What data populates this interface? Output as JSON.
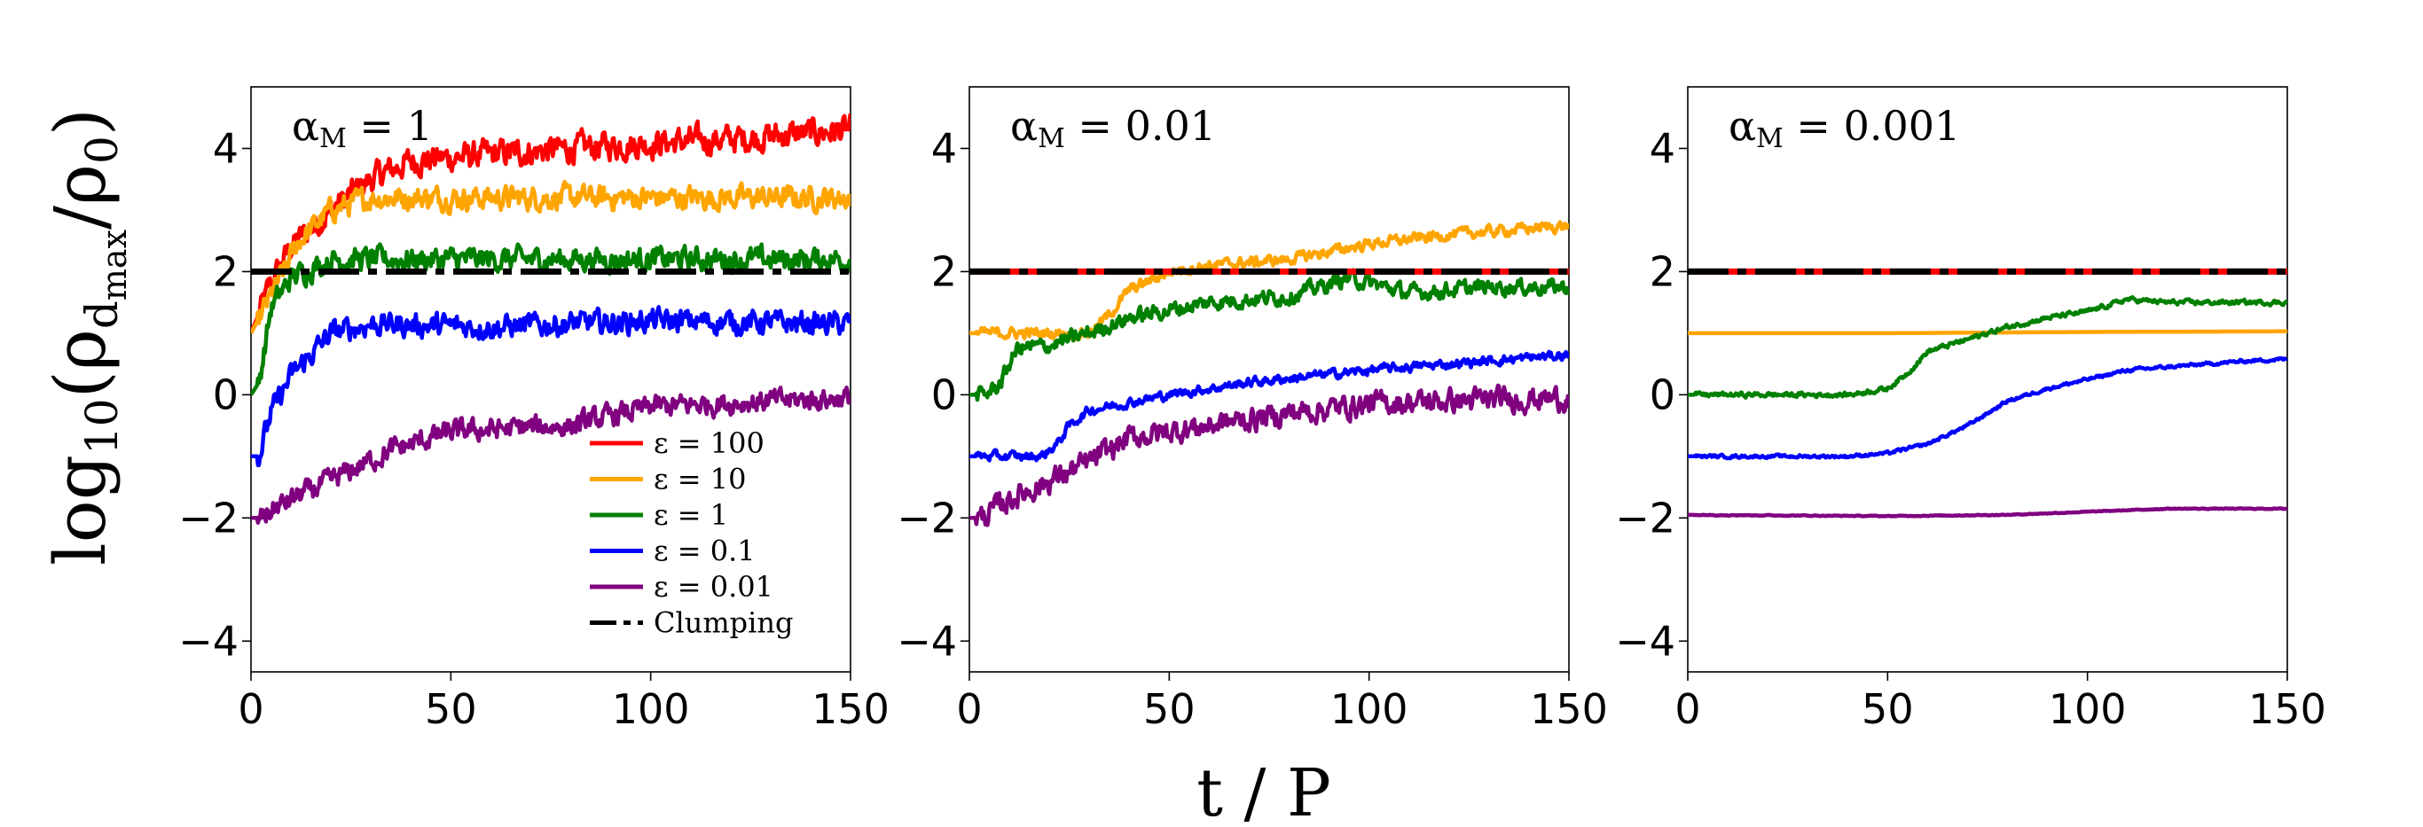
{
  "chart_data": {
    "type": "line",
    "xlabel": "t / P",
    "ylabel": "log10(ρ_dmax/ρ0)",
    "xlim": [
      0,
      150
    ],
    "ylim": [
      -4.5,
      5
    ],
    "xticks": [
      "0",
      "50",
      "100",
      "150"
    ],
    "yticks": [
      "−4",
      "−2",
      "0",
      "2",
      "4"
    ],
    "grid": false,
    "legend": {
      "location": "lower-right of first panel",
      "entries": [
        {
          "label": "ε = 100",
          "color": "#ff0000"
        },
        {
          "label": "ε = 10",
          "color": "#ffa500"
        },
        {
          "label": "ε = 1",
          "color": "#008000"
        },
        {
          "label": "ε = 0.1",
          "color": "#0000ff"
        },
        {
          "label": "ε = 0.01",
          "color": "#800080"
        },
        {
          "label": "Clumping",
          "color": "#000000"
        }
      ]
    },
    "panels": [
      {
        "title": "αM = 1",
        "series": [
          {
            "name": "ε = 100",
            "color": "#ff0000",
            "noise": 0.18,
            "points": [
              [
                0,
                1
              ],
              [
                5,
                1.8
              ],
              [
                10,
                2.4
              ],
              [
                20,
                3.0
              ],
              [
                30,
                3.5
              ],
              [
                40,
                3.8
              ],
              [
                60,
                3.9
              ],
              [
                90,
                4.05
              ],
              [
                120,
                4.15
              ],
              [
                150,
                4.3
              ]
            ]
          },
          {
            "name": "ε = 10",
            "color": "#ffa500",
            "noise": 0.15,
            "points": [
              [
                0,
                1
              ],
              [
                5,
                1.6
              ],
              [
                12,
                2.5
              ],
              [
                20,
                3.0
              ],
              [
                30,
                3.2
              ],
              [
                60,
                3.2
              ],
              [
                100,
                3.2
              ],
              [
                150,
                3.2
              ]
            ]
          },
          {
            "name": "ε = 1",
            "color": "#008000",
            "noise": 0.15,
            "points": [
              [
                0,
                0
              ],
              [
                2,
                0.2
              ],
              [
                5,
                1.4
              ],
              [
                10,
                1.9
              ],
              [
                20,
                2.2
              ],
              [
                60,
                2.2
              ],
              [
                100,
                2.2
              ],
              [
                150,
                2.2
              ]
            ]
          },
          {
            "name": "ε = 0.1",
            "color": "#0000ff",
            "noise": 0.15,
            "points": [
              [
                0,
                -1
              ],
              [
                2,
                -1
              ],
              [
                5,
                -0.3
              ],
              [
                10,
                0.3
              ],
              [
                20,
                1.0
              ],
              [
                30,
                1.15
              ],
              [
                60,
                1.1
              ],
              [
                100,
                1.2
              ],
              [
                150,
                1.15
              ]
            ]
          },
          {
            "name": "ε = 0.01",
            "color": "#800080",
            "noise": 0.14,
            "points": [
              [
                0,
                -2
              ],
              [
                2,
                -2
              ],
              [
                10,
                -1.7
              ],
              [
                20,
                -1.4
              ],
              [
                35,
                -0.9
              ],
              [
                50,
                -0.6
              ],
              [
                80,
                -0.5
              ],
              [
                100,
                -0.2
              ],
              [
                130,
                -0.1
              ],
              [
                150,
                -0.05
              ]
            ]
          }
        ],
        "clumping": {
          "y": 2,
          "segment_color": "#000000",
          "red_dashes": false
        }
      },
      {
        "title": "αM = 0.01",
        "series": [
          {
            "name": "ε = 10",
            "color": "#ffa500",
            "noise": 0.07,
            "points": [
              [
                0,
                1
              ],
              [
                30,
                1
              ],
              [
                35,
                1.3
              ],
              [
                40,
                1.7
              ],
              [
                50,
                2.0
              ],
              [
                60,
                2.1
              ],
              [
                80,
                2.2
              ],
              [
                100,
                2.45
              ],
              [
                120,
                2.6
              ],
              [
                150,
                2.75
              ]
            ]
          },
          {
            "name": "ε = 1",
            "color": "#008000",
            "noise": 0.1,
            "points": [
              [
                0,
                0
              ],
              [
                4,
                0
              ],
              [
                8,
                0.2
              ],
              [
                10,
                0.5
              ],
              [
                12,
                0.75
              ],
              [
                20,
                0.8
              ],
              [
                30,
                1.0
              ],
              [
                40,
                1.25
              ],
              [
                60,
                1.5
              ],
              [
                80,
                1.6
              ],
              [
                95,
                1.9
              ],
              [
                110,
                1.65
              ],
              [
                130,
                1.75
              ],
              [
                150,
                1.75
              ]
            ]
          },
          {
            "name": "ε = 0.1",
            "color": "#0000ff",
            "noise": 0.06,
            "points": [
              [
                0,
                -1
              ],
              [
                18,
                -1
              ],
              [
                22,
                -0.8
              ],
              [
                25,
                -0.5
              ],
              [
                30,
                -0.25
              ],
              [
                50,
                0
              ],
              [
                70,
                0.2
              ],
              [
                100,
                0.4
              ],
              [
                130,
                0.55
              ],
              [
                150,
                0.65
              ]
            ]
          },
          {
            "name": "ε = 0.01",
            "color": "#800080",
            "noise": 0.15,
            "points": [
              [
                0,
                -2
              ],
              [
                3,
                -2
              ],
              [
                10,
                -1.7
              ],
              [
                20,
                -1.4
              ],
              [
                30,
                -1.1
              ],
              [
                40,
                -0.7
              ],
              [
                60,
                -0.5
              ],
              [
                80,
                -0.3
              ],
              [
                100,
                -0.15
              ],
              [
                120,
                -0.1
              ],
              [
                150,
                -0.05
              ]
            ]
          }
        ],
        "clumping": {
          "y": 2,
          "segment_color": "#000000",
          "red_dashes": true
        }
      },
      {
        "title": "αM = 0.001",
        "series": [
          {
            "name": "ε = 10",
            "color": "#ffa500",
            "noise": 0.0,
            "points": [
              [
                0,
                1
              ],
              [
                50,
                1
              ],
              [
                100,
                1.02
              ],
              [
                150,
                1.03
              ]
            ]
          },
          {
            "name": "ε = 1",
            "color": "#008000",
            "noise": 0.03,
            "points": [
              [
                0,
                0
              ],
              [
                40,
                0
              ],
              [
                50,
                0.1
              ],
              [
                55,
                0.35
              ],
              [
                60,
                0.7
              ],
              [
                70,
                0.9
              ],
              [
                80,
                1.1
              ],
              [
                90,
                1.25
              ],
              [
                100,
                1.35
              ],
              [
                110,
                1.55
              ],
              [
                120,
                1.5
              ],
              [
                150,
                1.5
              ]
            ]
          },
          {
            "name": "ε = 0.1",
            "color": "#0000ff",
            "noise": 0.02,
            "points": [
              [
                0,
                -1
              ],
              [
                40,
                -1
              ],
              [
                50,
                -0.95
              ],
              [
                60,
                -0.8
              ],
              [
                70,
                -0.5
              ],
              [
                80,
                -0.1
              ],
              [
                90,
                0.1
              ],
              [
                100,
                0.25
              ],
              [
                110,
                0.4
              ],
              [
                120,
                0.45
              ],
              [
                140,
                0.55
              ],
              [
                150,
                0.58
              ]
            ]
          },
          {
            "name": "ε = 0.01",
            "color": "#800080",
            "noise": 0.005,
            "points": [
              [
                0,
                -1.95
              ],
              [
                50,
                -1.97
              ],
              [
                80,
                -1.95
              ],
              [
                100,
                -1.9
              ],
              [
                120,
                -1.85
              ],
              [
                150,
                -1.85
              ]
            ]
          }
        ],
        "clumping": {
          "y": 2,
          "segment_color": "#000000",
          "red_dashes": true
        }
      }
    ]
  }
}
